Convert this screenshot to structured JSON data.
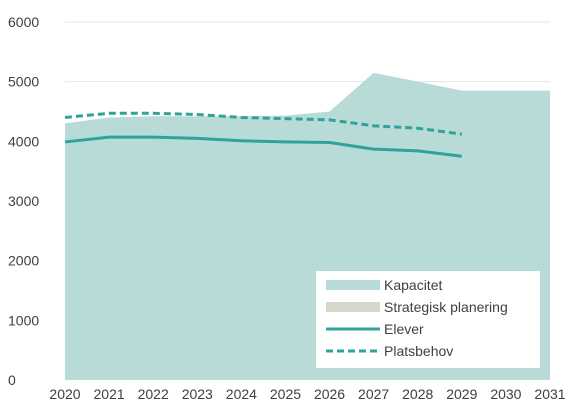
{
  "chart_data": {
    "type": "area",
    "title": "",
    "xlabel": "",
    "ylabel": "",
    "x": [
      "2020",
      "2021",
      "2022",
      "2023",
      "2024",
      "2025",
      "2026",
      "2027",
      "2028",
      "2029",
      "2030",
      "2031"
    ],
    "ylim": [
      0,
      6000
    ],
    "yticks": [
      "0",
      "1000",
      "2000",
      "3000",
      "4000",
      "5000",
      "6000"
    ],
    "grid": true,
    "legend_position": "bottom-right",
    "series": [
      {
        "name": "Kapacitet",
        "kind": "area",
        "color": "#b9dbd7",
        "values": [
          4300,
          4400,
          4420,
          4420,
          4420,
          4430,
          4500,
          5150,
          5000,
          4850,
          4850,
          4850
        ]
      },
      {
        "name": "Strategisk planering",
        "kind": "area",
        "color": "#d9d6cc",
        "values": [
          0,
          0,
          0,
          0,
          0,
          0,
          0,
          0,
          0,
          0,
          0,
          0
        ]
      },
      {
        "name": "Elever",
        "kind": "line",
        "color": "#2fa39a",
        "values": [
          3990,
          4070,
          4070,
          4050,
          4010,
          3990,
          3980,
          3870,
          3840,
          3750,
          null,
          null
        ]
      },
      {
        "name": "Platsbehov",
        "kind": "dashed-line",
        "color": "#2fa39a",
        "values": [
          4400,
          4470,
          4470,
          4450,
          4400,
          4380,
          4360,
          4260,
          4220,
          4120,
          null,
          null
        ]
      }
    ]
  }
}
